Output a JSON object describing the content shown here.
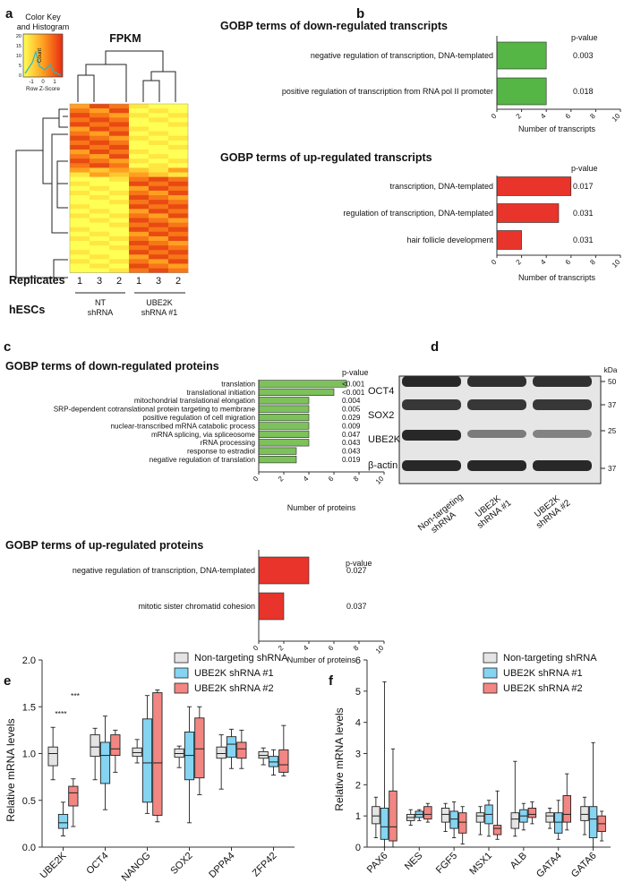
{
  "panels": {
    "a": {
      "letter": "a",
      "title": "FPKM",
      "color_key": {
        "line1": "Color Key",
        "line2": "and Histogram",
        "count_label": "Count",
        "xlabel": "Row Z-Score",
        "ticks": [
          "-1",
          "0",
          "1"
        ],
        "yticks": [
          "0",
          "5",
          "10",
          "15",
          "20"
        ]
      },
      "replicates_label": "Replicates",
      "hescs_label": "hESCs",
      "replicates": [
        "1",
        "3",
        "2",
        "1",
        "3",
        "2"
      ],
      "groups": [
        {
          "line1": "NT",
          "line2": "shRNA"
        },
        {
          "line1": "UBE2K",
          "line2": "shRNA #1"
        }
      ],
      "colors": {
        "low": "#ffff55",
        "mid": "#ffa020",
        "high": "#e82a12"
      }
    },
    "b": {
      "letter": "b",
      "down": {
        "title": "GOBP terms of down-regulated transcripts",
        "pheader": "p-value",
        "xlabel": "Number of transcripts",
        "color": "#55b545",
        "items": [
          {
            "label": "negative regulation of transcription, DNA-templated",
            "value": 4,
            "p": "0.003"
          },
          {
            "label": "positive regulation of transcription from RNA pol II promoter",
            "value": 4,
            "p": "0.018"
          }
        ]
      },
      "up": {
        "title": "GOBP terms of up-regulated transcripts",
        "pheader": "p-value",
        "xlabel": "Number of transcripts",
        "color": "#e8342a",
        "items": [
          {
            "label": "transcription, DNA-templated",
            "value": 6,
            "p": "0.017"
          },
          {
            "label": "regulation of transcription, DNA-templated",
            "value": 5,
            "p": "0.031"
          },
          {
            "label": "hair follicle development",
            "value": 2,
            "p": "0.031"
          }
        ]
      },
      "xticks": [
        "0",
        "2",
        "4",
        "6",
        "8",
        "10"
      ]
    },
    "c": {
      "letter": "c",
      "down": {
        "title": "GOBP terms of down-regulated proteins",
        "pheader": "p-value",
        "xlabel": "Number of proteins",
        "color": "#7cc15a",
        "items": [
          {
            "label": "translation",
            "value": 7,
            "p": "<0.001"
          },
          {
            "label": "translational initiation",
            "value": 6,
            "p": "<0.001"
          },
          {
            "label": "mitochondrial translational elongation",
            "value": 4,
            "p": "0.004"
          },
          {
            "label": "SRP-dependent cotranslational protein targeting to membrane",
            "value": 4,
            "p": "0.005"
          },
          {
            "label": "positive regulation of cell migration",
            "value": 4,
            "p": "0.029"
          },
          {
            "label": "nuclear-transcribed mRNA catabolic process",
            "value": 4,
            "p": "0.009"
          },
          {
            "label": "mRNA splicing, via spliceosome",
            "value": 4,
            "p": "0.047"
          },
          {
            "label": "rRNA processing",
            "value": 4,
            "p": "0.043"
          },
          {
            "label": "response to estradiol",
            "value": 3,
            "p": "0.043"
          },
          {
            "label": "negative regulation of translation",
            "value": 3,
            "p": "0.019"
          }
        ]
      },
      "up": {
        "title": "GOBP terms of up-regulated proteins",
        "pheader": "p-value",
        "xlabel": "Number of proteins",
        "color": "#e8342a",
        "items": [
          {
            "label": "negative regulation of transcription, DNA-templated",
            "value": 4,
            "p": "0.027"
          },
          {
            "label": "mitotic sister chromatid cohesion",
            "value": 2,
            "p": "0.037"
          }
        ]
      },
      "xticks": [
        "0",
        "2",
        "4",
        "6",
        "8",
        "10"
      ]
    },
    "d": {
      "letter": "d",
      "unit": "kDa",
      "proteins": [
        "OCT4",
        "SOX2",
        "UBE2K",
        "β-actin"
      ],
      "markers": [
        "50",
        "37",
        "25",
        "37"
      ],
      "lanes": [
        {
          "line1": "Non-targeting",
          "line2": "shRNA"
        },
        {
          "line1": "UBE2K",
          "line2": "shRNA #1"
        },
        {
          "line1": "UBE2K",
          "line2": "shRNA #2"
        }
      ],
      "band_intensity": [
        [
          1,
          0.95,
          0.95
        ],
        [
          0.9,
          0.9,
          0.9
        ],
        [
          1,
          0.45,
          0.4
        ],
        [
          1,
          1,
          1
        ]
      ]
    },
    "e": {
      "letter": "e",
      "ylabel": "Relative mRNA levels",
      "yticks": [
        "0.0",
        "0.5",
        "1.0",
        "1.5",
        "2.0"
      ],
      "sig": [
        "****",
        "***"
      ]
    },
    "f": {
      "letter": "f",
      "ylabel": "Relative mRNA levels",
      "yticks": [
        "0",
        "1",
        "2",
        "3",
        "4",
        "5",
        "6"
      ]
    }
  },
  "legend": [
    {
      "label": "Non-targeting shRNA",
      "color": "#e4e4e4"
    },
    {
      "label": "UBE2K shRNA #1",
      "color": "#84d4f2"
    },
    {
      "label": "UBE2K shRNA #2",
      "color": "#f28682"
    }
  ],
  "chart_data": [
    {
      "type": "box",
      "panel": "e",
      "ylabel": "Relative mRNA levels",
      "ylim": [
        0,
        2.0
      ],
      "categories": [
        "UBE2K",
        "OCT4",
        "NANOG",
        "SOX2",
        "DPPA4",
        "ZFP42"
      ],
      "series": [
        {
          "name": "Non-targeting shRNA",
          "boxes": [
            [
              0.72,
              0.87,
              1.0,
              1.07,
              1.28
            ],
            [
              0.72,
              0.97,
              1.07,
              1.2,
              1.27
            ],
            [
              0.9,
              0.97,
              1.01,
              1.06,
              1.15
            ],
            [
              0.85,
              0.96,
              1.0,
              1.05,
              1.08
            ],
            [
              0.62,
              0.95,
              1.0,
              1.07,
              1.2
            ],
            [
              0.88,
              0.95,
              0.98,
              1.02,
              1.06
            ]
          ]
        },
        {
          "name": "UBE2K shRNA #1",
          "boxes": [
            [
              0.12,
              0.2,
              0.26,
              0.35,
              0.48
            ],
            [
              0.4,
              0.68,
              0.98,
              1.12,
              1.4
            ],
            [
              0.36,
              0.48,
              0.9,
              1.37,
              1.62
            ],
            [
              0.26,
              0.72,
              0.98,
              1.23,
              1.5
            ],
            [
              0.84,
              0.96,
              1.1,
              1.18,
              1.26
            ],
            [
              0.77,
              0.86,
              0.91,
              0.97,
              1.04
            ]
          ]
        },
        {
          "name": "UBE2K shRNA #2",
          "boxes": [
            [
              0.22,
              0.44,
              0.58,
              0.65,
              0.73
            ],
            [
              0.8,
              0.98,
              1.05,
              1.2,
              1.25
            ],
            [
              0.27,
              0.34,
              0.9,
              1.65,
              1.68
            ],
            [
              0.56,
              0.74,
              1.05,
              1.38,
              1.5
            ],
            [
              0.84,
              0.95,
              1.05,
              1.12,
              1.25
            ],
            [
              0.76,
              0.8,
              0.88,
              1.04,
              1.3
            ]
          ]
        }
      ]
    },
    {
      "type": "box",
      "panel": "f",
      "ylabel": "Relative mRNA levels",
      "ylim": [
        0,
        6
      ],
      "categories": [
        "PAX6",
        "NES",
        "FGF5",
        "MSX1",
        "ALB",
        "GATA4",
        "GATA6"
      ],
      "series": [
        {
          "name": "Non-targeting shRNA",
          "boxes": [
            [
              0.3,
              0.75,
              1.0,
              1.3,
              1.6
            ],
            [
              0.7,
              0.85,
              0.95,
              1.05,
              1.2
            ],
            [
              0.5,
              0.8,
              1.05,
              1.25,
              1.4
            ],
            [
              0.4,
              0.8,
              1.0,
              1.1,
              1.3
            ],
            [
              0.35,
              0.6,
              0.9,
              1.1,
              2.75
            ],
            [
              0.6,
              0.8,
              1.0,
              1.1,
              1.25
            ],
            [
              0.4,
              0.85,
              1.05,
              1.3,
              1.6
            ]
          ]
        },
        {
          "name": "UBE2K shRNA #1",
          "boxes": [
            [
              0.0,
              0.25,
              0.65,
              1.25,
              5.3
            ],
            [
              0.85,
              0.95,
              1.05,
              1.15,
              1.2
            ],
            [
              0.3,
              0.6,
              0.9,
              1.15,
              1.45
            ],
            [
              0.35,
              0.75,
              1.05,
              1.35,
              1.5
            ],
            [
              0.55,
              0.8,
              1.0,
              1.2,
              1.4
            ],
            [
              0.25,
              0.45,
              0.8,
              1.1,
              1.5
            ],
            [
              0.0,
              0.3,
              0.9,
              1.3,
              3.35
            ]
          ]
        },
        {
          "name": "UBE2K shRNA #2",
          "boxes": [
            [
              0.0,
              0.2,
              0.65,
              1.8,
              3.15
            ],
            [
              0.8,
              0.9,
              1.05,
              1.3,
              1.4
            ],
            [
              0.1,
              0.45,
              0.8,
              1.1,
              1.3
            ],
            [
              0.25,
              0.4,
              0.6,
              0.7,
              1.8
            ],
            [
              0.75,
              0.95,
              1.05,
              1.25,
              1.45
            ],
            [
              0.55,
              0.8,
              1.05,
              1.65,
              2.35
            ],
            [
              0.2,
              0.5,
              0.75,
              1.0,
              1.15
            ]
          ]
        }
      ]
    },
    {
      "type": "heatmap",
      "panel": "a",
      "title": "FPKM",
      "columns": [
        "1",
        "3",
        "2",
        "1",
        "3",
        "2"
      ],
      "rows": 37,
      "scale": "Row Z-Score"
    }
  ]
}
